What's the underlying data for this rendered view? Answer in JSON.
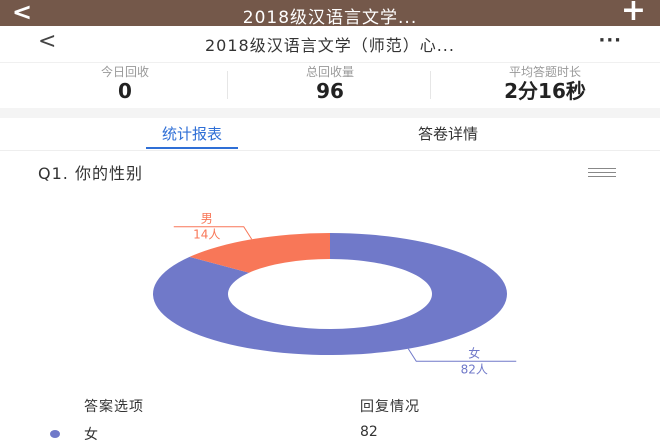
{
  "topbar": {
    "back_label": "<",
    "title": "2018级汉语言文学...",
    "plus_label": "+"
  },
  "navbar": {
    "back_label": "<",
    "title": "2018级汉语言文学（师范）心...",
    "more_label": "···"
  },
  "stats": [
    {
      "label": "今日回收",
      "value": "0"
    },
    {
      "label": "总回收量",
      "value": "96"
    },
    {
      "label": "平均答题时长",
      "value": "2分16秒"
    }
  ],
  "tabs": [
    {
      "label": "统计报表",
      "active": true
    },
    {
      "label": "答卷详情",
      "active": false
    }
  ],
  "question": {
    "title": "Q1. 你的性别",
    "menu_icon": "hamburger-menu-icon"
  },
  "chart_data": {
    "type": "pie",
    "style": "donut",
    "categories": [
      "女",
      "男"
    ],
    "values": [
      82,
      14
    ],
    "labels": [
      "82人",
      "14人"
    ],
    "colors": [
      "#7079c9",
      "#f87758"
    ],
    "title": ""
  },
  "table": {
    "headers": [
      "答案选项",
      "回复情况"
    ],
    "rows": [
      {
        "option": "女",
        "count": "82",
        "color": "#7079c9"
      }
    ]
  },
  "colors": {
    "topbar": "#74584a",
    "accent": "#2f6fd6"
  }
}
